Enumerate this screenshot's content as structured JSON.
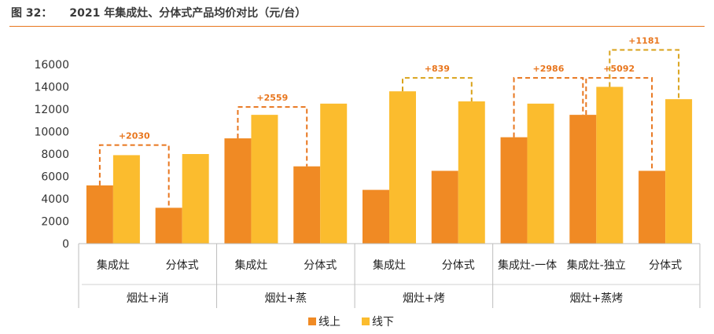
{
  "figure": {
    "label": "图 32：",
    "title": "2021 年集成灶、分体式产品均价对比（元/台）"
  },
  "chart_data": {
    "type": "bar",
    "categories": [
      "集成灶",
      "分体式",
      "集成灶",
      "分体式",
      "集成灶",
      "分体式",
      "集成灶-一体",
      "集成灶-独立",
      "分体式"
    ],
    "groups": [
      {
        "label": "烟灶+消",
        "members": [
          0,
          1
        ]
      },
      {
        "label": "烟灶+蒸",
        "members": [
          2,
          3
        ]
      },
      {
        "label": "烟灶+烤",
        "members": [
          4,
          5
        ]
      },
      {
        "label": "烟灶+蒸烤",
        "members": [
          6,
          7,
          8
        ]
      }
    ],
    "series": [
      {
        "name": "线上",
        "color": "#f08a24",
        "values": [
          5200,
          3200,
          9400,
          6900,
          4800,
          6500,
          9500,
          11500,
          6500
        ]
      },
      {
        "name": "线下",
        "color": "#fbbc2e",
        "values": [
          7900,
          8000,
          11500,
          12500,
          13600,
          12700,
          12500,
          14000,
          12900
        ]
      }
    ],
    "ylim": [
      0,
      16000
    ],
    "yticks": [
      0,
      2000,
      4000,
      6000,
      8000,
      10000,
      12000,
      14000,
      16000
    ],
    "grid": false,
    "legend_position": "bottom",
    "annotations": [
      {
        "text": "+2030",
        "from_category": 0,
        "to_category": 1,
        "color": "#e8761e"
      },
      {
        "text": "+2559",
        "from_category": 2,
        "to_category": 3,
        "color": "#e8761e"
      },
      {
        "text": "+839",
        "from_category": 4,
        "to_category": 5,
        "color": "#d9a21a"
      },
      {
        "text": "+2986",
        "from_category": 6,
        "to_category": 7,
        "color": "#e8761e"
      },
      {
        "text": "+5092",
        "from_category": 7,
        "to_category": 8,
        "color": "#e8761e"
      },
      {
        "text": "+1181",
        "from_category": 7,
        "to_category": 8,
        "color": "#d9a21a"
      }
    ]
  }
}
